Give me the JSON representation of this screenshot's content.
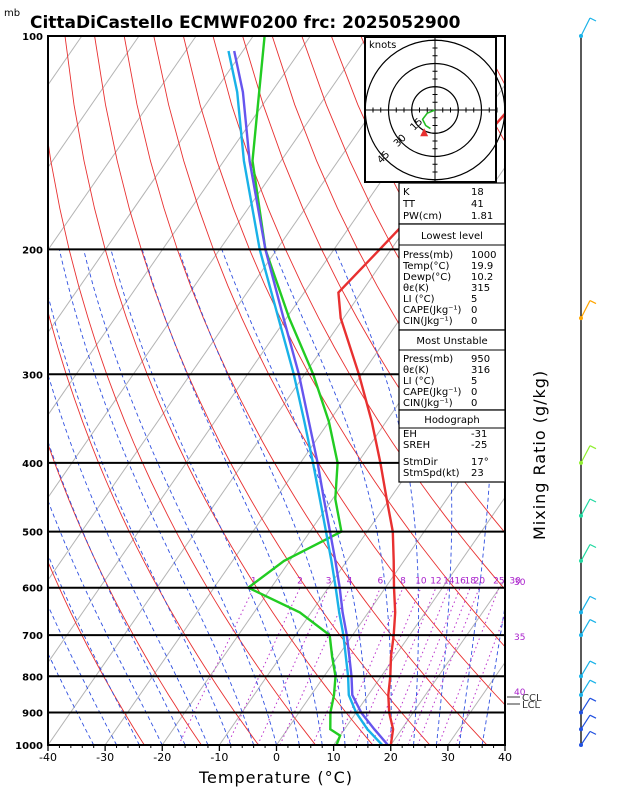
{
  "header": {
    "unit": "mb",
    "title": "CittaDiCastello ECMWF0200 frc: 2025052900"
  },
  "axes": {
    "xlabel": "Temperature (°C)",
    "right_label": "Mixing Ratio (g/kg)",
    "x_ticks": [
      "-40",
      "-30",
      "-20",
      "-10",
      "0",
      "10",
      "20",
      "30",
      "40"
    ],
    "p_ticks": [
      "100",
      "200",
      "300",
      "400",
      "500",
      "600",
      "700",
      "800",
      "900",
      "1000"
    ]
  },
  "hodograph": {
    "unit_label": "knots",
    "ring_labels": [
      "15",
      "30",
      "45"
    ]
  },
  "indices": [
    {
      "label": "K",
      "value": "18"
    },
    {
      "label": "TT",
      "value": "41"
    },
    {
      "label": "PW(cm)",
      "value": "1.81"
    }
  ],
  "lowest_level": {
    "title": "Lowest level",
    "rows": [
      {
        "label": "Press(mb)",
        "value": "1000"
      },
      {
        "label": "Temp(°C)",
        "value": "19.9"
      },
      {
        "label": "Dewp(°C)",
        "value": "10.2"
      },
      {
        "label": "θε(K)",
        "value": "315"
      },
      {
        "label": "LI (°C)",
        "value": "5"
      },
      {
        "label": "CAPE(Jkg⁻¹)",
        "value": "0"
      },
      {
        "label": "CIN(Jkg⁻¹)",
        "value": "0"
      }
    ]
  },
  "most_unstable": {
    "title": "Most Unstable",
    "rows": [
      {
        "label": "Press(mb)",
        "value": "950"
      },
      {
        "label": "θε(K)",
        "value": "316"
      },
      {
        "label": "LI (°C)",
        "value": "5"
      },
      {
        "label": "CAPE(Jkg⁻¹)",
        "value": "0"
      },
      {
        "label": "CIN(Jkg⁻¹)",
        "value": "0"
      }
    ]
  },
  "hodograph_box": {
    "title": "Hodograph",
    "rows": [
      {
        "label": "EH",
        "value": "-31"
      },
      {
        "label": "SREH",
        "value": "-25"
      },
      {
        "label": "StmDir",
        "value": "17°"
      },
      {
        "label": "StmSpd(kt)",
        "value": "23"
      }
    ]
  },
  "annotations": {
    "mixing_ratio_labels": [
      "1",
      "2",
      "3",
      "4",
      "6",
      "8",
      "10",
      "12",
      "14",
      "16",
      "18",
      "20",
      "25",
      "30"
    ],
    "theta_labels": [
      "30",
      "35",
      "40"
    ],
    "levels": [
      "CCL",
      "LCL"
    ]
  },
  "chart_data": {
    "type": "line",
    "chart": "skew-T log-P",
    "title": "CittaDiCastello ECMWF0200 frc: 2025052900",
    "xlabel": "Temperature (°C)",
    "ylabel": "mb",
    "xlim": [
      -40,
      40
    ],
    "ylim": [
      1000,
      100
    ],
    "y_scale": "log",
    "series": [
      {
        "color": "#e83030",
        "points": [
          [
            1000,
            20.0
          ],
          [
            950,
            18.5
          ],
          [
            900,
            15.8
          ],
          [
            850,
            13.5
          ],
          [
            800,
            11.6
          ],
          [
            750,
            9.3
          ],
          [
            700,
            7.2
          ],
          [
            650,
            4.7
          ],
          [
            600,
            1.5
          ],
          [
            550,
            -1.8
          ],
          [
            500,
            -5.5
          ],
          [
            450,
            -10.5
          ],
          [
            400,
            -16.0
          ],
          [
            350,
            -22.5
          ],
          [
            300,
            -30.5
          ],
          [
            250,
            -40.5
          ],
          [
            230,
            -44.0
          ],
          [
            200,
            -42.0
          ],
          [
            150,
            -38.0
          ],
          [
            100,
            -34.0
          ]
        ]
      },
      {
        "color": "#22cc22",
        "points": [
          [
            1000,
            10.5
          ],
          [
            970,
            10.0
          ],
          [
            950,
            7.5
          ],
          [
            900,
            5.5
          ],
          [
            850,
            4.0
          ],
          [
            800,
            2.0
          ],
          [
            750,
            -1.0
          ],
          [
            700,
            -4.0
          ],
          [
            650,
            -12.0
          ],
          [
            600,
            -24.0
          ],
          [
            550,
            -21.0
          ],
          [
            500,
            -14.5
          ],
          [
            450,
            -19.5
          ],
          [
            400,
            -23.5
          ],
          [
            350,
            -30.0
          ],
          [
            300,
            -38.5
          ],
          [
            250,
            -49.5
          ],
          [
            200,
            -62.0
          ],
          [
            150,
            -75.0
          ],
          [
            100,
            -88.0
          ]
        ]
      },
      {
        "color": "#6655ee",
        "points": [
          [
            1000,
            19.5
          ],
          [
            950,
            15.2
          ],
          [
            900,
            10.9
          ],
          [
            850,
            7.2
          ],
          [
            800,
            4.8
          ],
          [
            750,
            2.0
          ],
          [
            700,
            -1.0
          ],
          [
            650,
            -4.5
          ],
          [
            600,
            -8.0
          ],
          [
            550,
            -12.0
          ],
          [
            500,
            -16.5
          ],
          [
            450,
            -21.5
          ],
          [
            400,
            -27.0
          ],
          [
            350,
            -33.5
          ],
          [
            300,
            -41.0
          ],
          [
            250,
            -50.5
          ],
          [
            200,
            -62.0
          ],
          [
            150,
            -75.5
          ],
          [
            120,
            -85.0
          ],
          [
            105,
            -91.5
          ]
        ]
      },
      {
        "color": "#19b2e8",
        "points": [
          [
            1000,
            18.5
          ],
          [
            950,
            14.0
          ],
          [
            900,
            10.0
          ],
          [
            850,
            6.6
          ],
          [
            800,
            4.2
          ],
          [
            750,
            1.4
          ],
          [
            700,
            -1.6
          ],
          [
            650,
            -5.1
          ],
          [
            600,
            -8.7
          ],
          [
            550,
            -12.7
          ],
          [
            500,
            -17.2
          ],
          [
            450,
            -22.2
          ],
          [
            400,
            -27.8
          ],
          [
            350,
            -34.3
          ],
          [
            300,
            -41.9
          ],
          [
            250,
            -51.4
          ],
          [
            200,
            -63.0
          ],
          [
            150,
            -76.5
          ],
          [
            120,
            -86.0
          ],
          [
            105,
            -92.5
          ]
        ]
      }
    ],
    "wind_profile": [
      {
        "p": 100,
        "color": "#19b2e8"
      },
      {
        "p": 250,
        "color": "#ffa500"
      },
      {
        "p": 400,
        "color": "#90ee30"
      },
      {
        "p": 475,
        "color": "#20d8a0"
      },
      {
        "p": 550,
        "color": "#20d8a0"
      },
      {
        "p": 650,
        "color": "#19b2e8"
      },
      {
        "p": 700,
        "color": "#19b2e8"
      },
      {
        "p": 800,
        "color": "#19b2e8"
      },
      {
        "p": 850,
        "color": "#19b2e8"
      },
      {
        "p": 900,
        "color": "#2050e0"
      },
      {
        "p": 950,
        "color": "#2050e0"
      },
      {
        "p": 1000,
        "color": "#2050e0"
      }
    ],
    "hodograph_trace": [
      [
        0,
        0
      ],
      [
        -5,
        -2
      ],
      [
        -8,
        -6
      ],
      [
        -6,
        -10
      ],
      [
        -3,
        -12
      ]
    ],
    "storm_motion": {
      "dir": 17,
      "spd": 23
    }
  }
}
